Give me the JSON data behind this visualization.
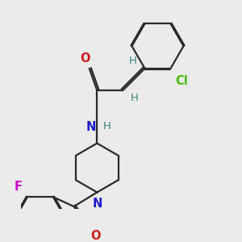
{
  "background_color": "#ebebeb",
  "bond_color": "#2a2a2a",
  "bond_width": 1.6,
  "atom_colors": {
    "C": "#000000",
    "N": "#1a1acc",
    "O": "#cc1a1a",
    "Cl": "#44bb00",
    "F": "#cc00cc",
    "H": "#408080"
  },
  "font_size": 9.5
}
